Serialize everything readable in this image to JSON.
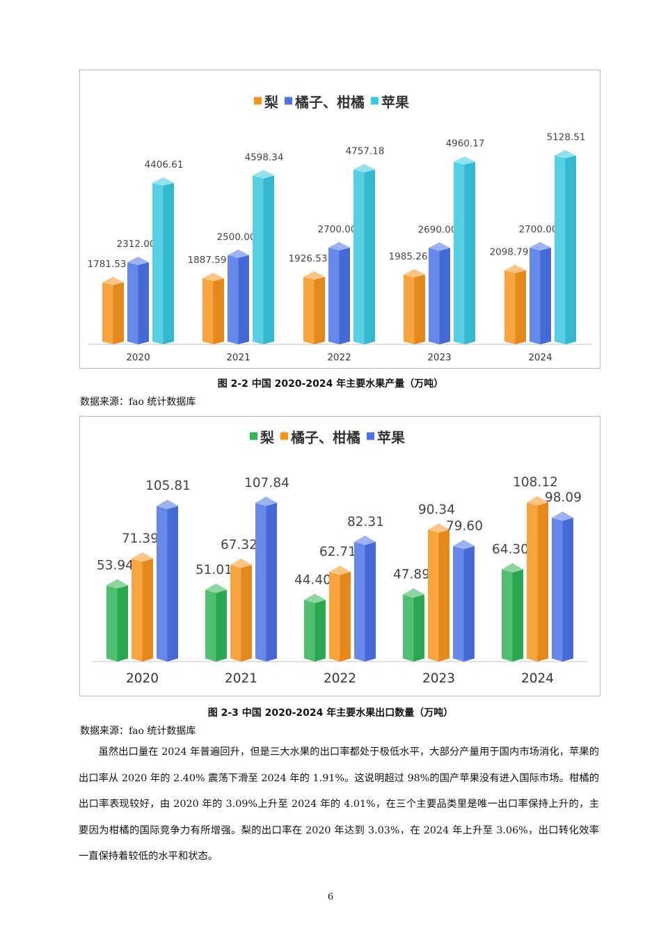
{
  "chart_data": [
    {
      "type": "bar",
      "categories": [
        "2020",
        "2021",
        "2022",
        "2023",
        "2024"
      ],
      "series": [
        {
          "name": "梨",
          "values": [
            1781.53,
            1887.59,
            1926.53,
            1985.26,
            2098.79
          ],
          "labels": [
            "1781.53",
            "1887.59",
            "1926.53",
            "1985.26",
            "2098.79"
          ],
          "color": "#f7941d"
        },
        {
          "name": "橘子、柑橘",
          "values": [
            2312.0,
            2500.0,
            2700.0,
            2690.0,
            2700.0
          ],
          "labels": [
            "2312.00",
            "2500.00",
            "2700.00",
            "2690.00",
            "2700.00"
          ],
          "color": "#4b73e8"
        },
        {
          "name": "苹果",
          "values": [
            4406.61,
            4598.34,
            4757.18,
            4960.17,
            5128.51
          ],
          "labels": [
            "4406.61",
            "4598.34",
            "4757.18",
            "4960.17",
            "5128.51"
          ],
          "color": "#39c8e0"
        }
      ],
      "legend_position": "top-center",
      "grid": false
    },
    {
      "type": "bar",
      "categories": [
        "2020",
        "2021",
        "2022",
        "2023",
        "2024"
      ],
      "series": [
        {
          "name": "梨",
          "values": [
            53.94,
            51.01,
            44.4,
            47.89,
            64.3
          ],
          "labels": [
            "53.94",
            "51.01",
            "44.40",
            "47.89",
            "64.30"
          ],
          "color": "#2fb556"
        },
        {
          "name": "橘子、柑橘",
          "values": [
            71.39,
            67.32,
            62.71,
            90.34,
            108.12
          ],
          "labels": [
            "71.39",
            "67.32",
            "62.71",
            "90.34",
            "108.12"
          ],
          "color": "#f7941d"
        },
        {
          "name": "苹果",
          "values": [
            105.81,
            107.84,
            82.31,
            79.6,
            98.09
          ],
          "labels": [
            "105.81",
            "107.84",
            "82.31",
            "79.60",
            "98.09"
          ],
          "color": "#4b73e8"
        }
      ],
      "legend_position": "top-center",
      "grid": false
    }
  ],
  "figure1": {
    "caption": "图 2-2 中国 2020-2024 年主要水果产量（万吨）",
    "source": "数据来源：fao 统计数据库"
  },
  "figure2": {
    "caption": "图 2-3 中国 2020-2024 年主要水果出口数量（万吨）",
    "source": "数据来源：fao 统计数据库"
  },
  "paragraph": "虽然出口量在 2024 年普遍回升，但是三大水果的出口率都处于极低水平，大部分产量用于国内市场消化，苹果的出口率从 2020 年的 2.40% 震荡下滑至 2024 年的 1.91%。这说明超过 98%的国产苹果没有进入国际市场。柑橘的出口率表现较好，由 2020 年的 3.09%上升至 2024 年的 4.01%，在三个主要品类里是唯一出口率保持上升的，主要因为柑橘的国际竞争力有所增强。梨的出口率在 2020 年达到 3.03%，在 2024 年上升至 3.06%，出口转化效率一直保持着较低的水平和状态。",
  "page_number": "6"
}
